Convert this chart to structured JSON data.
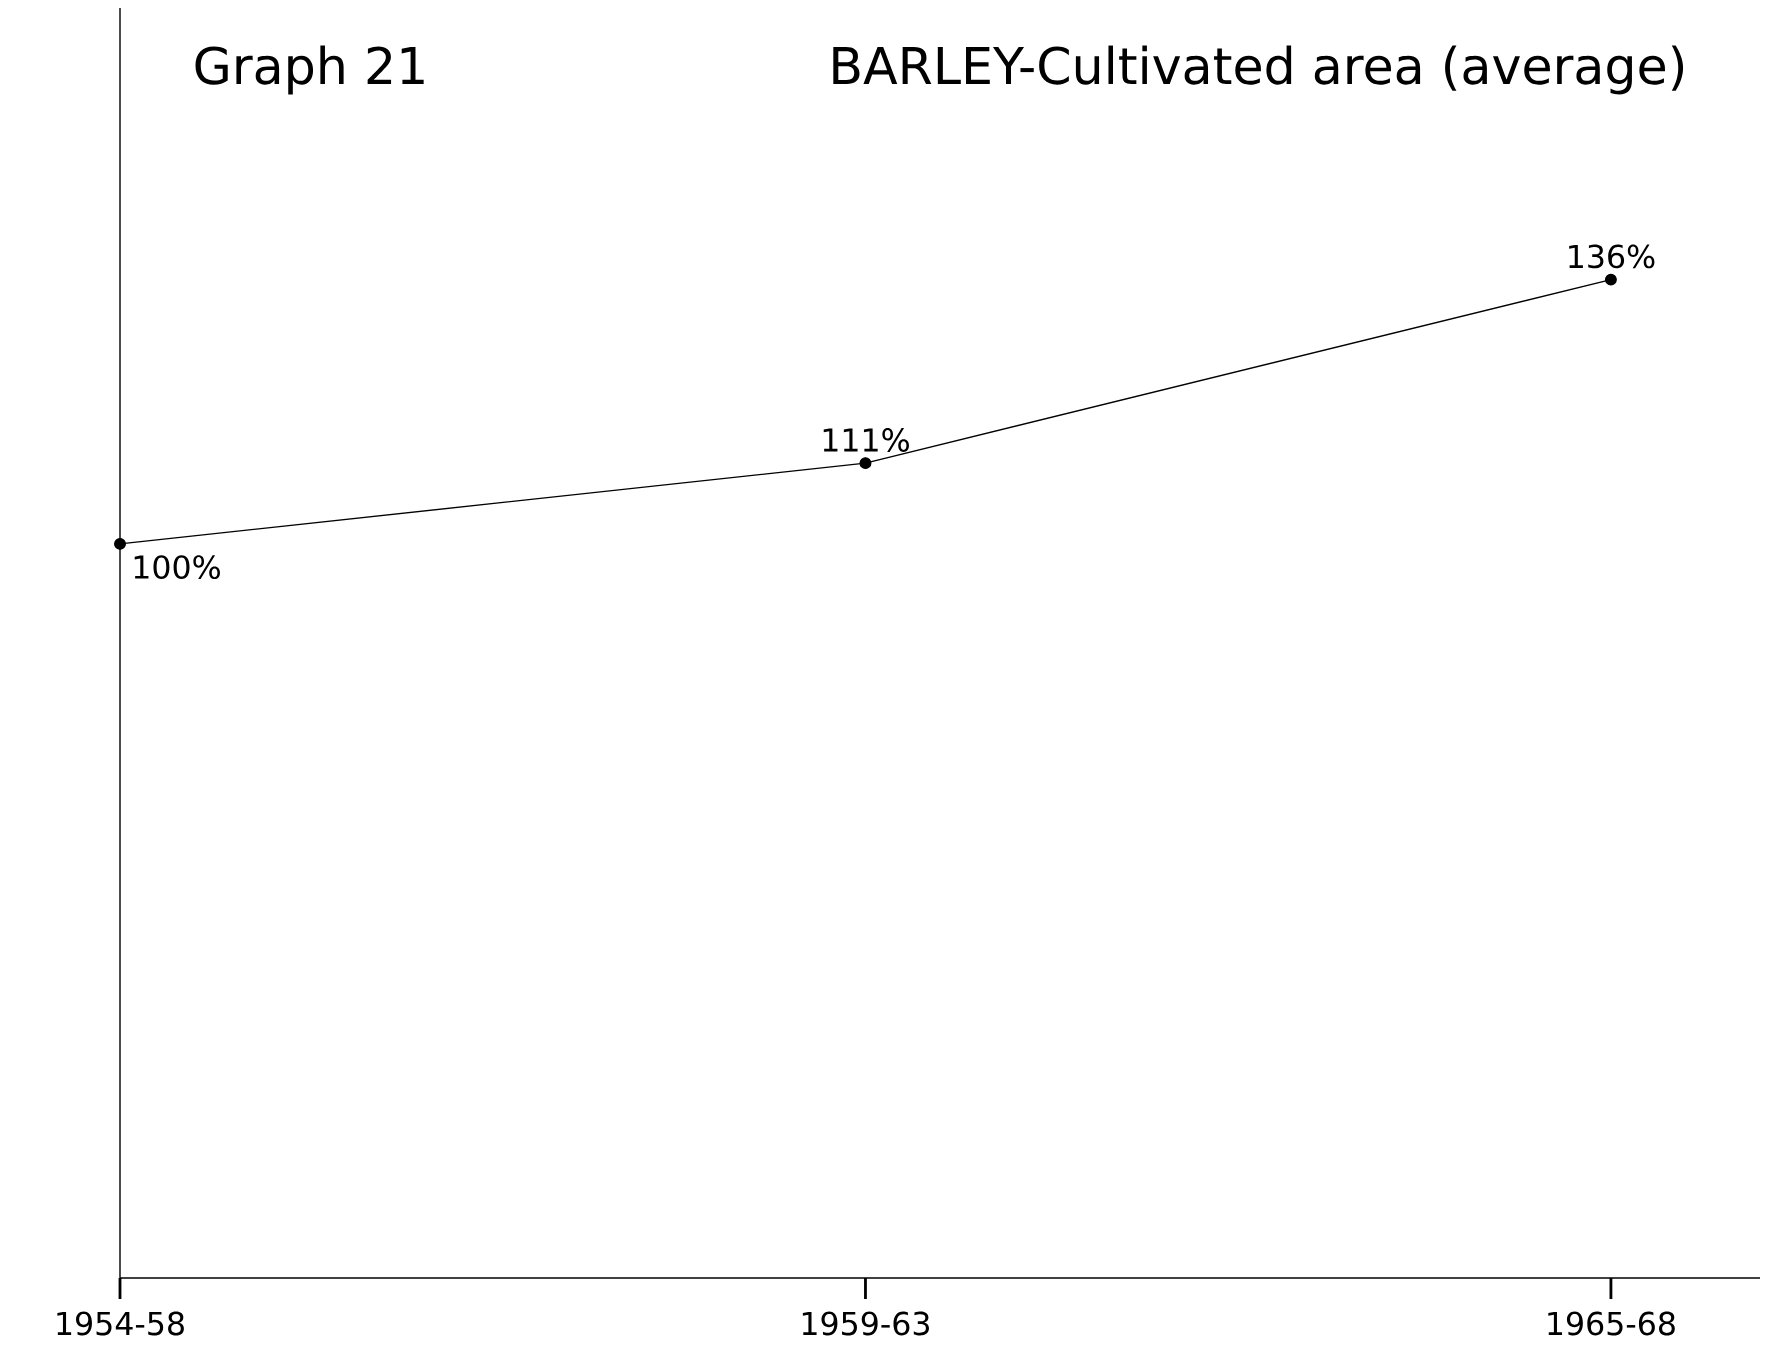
{
  "chart_data": {
    "type": "line",
    "title": "Graph 21",
    "subtitle": "BARLEY-Cultivated area (average)",
    "categories": [
      "1954-58",
      "1959-63",
      "1965-68"
    ],
    "values": [
      100,
      111,
      136
    ],
    "value_labels": [
      "100%",
      "111%",
      "136%"
    ],
    "color": "#000000",
    "marker": "circle",
    "line_style": "solid",
    "ylim": [
      0,
      173
    ],
    "tick_labels": "x"
  }
}
